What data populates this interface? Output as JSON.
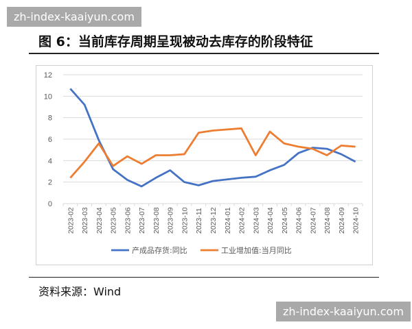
{
  "watermark": "zh-index-kaaiyun.com",
  "title": "图 6：当前库存周期呈现被动去库存的阶段特征",
  "source": "资料来源：Wind",
  "chart_data": {
    "type": "line",
    "categories": [
      "2023-02",
      "2023-03",
      "2023-04",
      "2023-05",
      "2023-06",
      "2023-07",
      "2023-08",
      "2023-09",
      "2023-10",
      "2023-11",
      "2023-12",
      "2024-01",
      "2024-02",
      "2024-03",
      "2024-04",
      "2024-05",
      "2024-06",
      "2024-07",
      "2024-08",
      "2024-09",
      "2024-10"
    ],
    "series": [
      {
        "name": "产成品存货:同比",
        "color": "#4472c4",
        "values": [
          10.7,
          9.2,
          5.9,
          3.2,
          2.2,
          1.6,
          2.4,
          3.1,
          2.0,
          1.7,
          2.1,
          2.25,
          2.4,
          2.5,
          3.1,
          3.6,
          4.7,
          5.2,
          5.1,
          4.6,
          3.9
        ]
      },
      {
        "name": "工业增加值:当月同比",
        "color": "#ed7d31",
        "values": [
          2.4,
          3.9,
          5.6,
          3.5,
          4.4,
          3.7,
          4.5,
          4.5,
          4.6,
          6.6,
          6.8,
          6.9,
          7.0,
          4.5,
          6.7,
          5.6,
          5.3,
          5.1,
          4.5,
          5.4,
          5.3
        ]
      }
    ],
    "ylim": [
      0,
      12
    ],
    "yticks": [
      0,
      2,
      4,
      6,
      8,
      10,
      12
    ],
    "grid": true,
    "legend": "bottom"
  }
}
